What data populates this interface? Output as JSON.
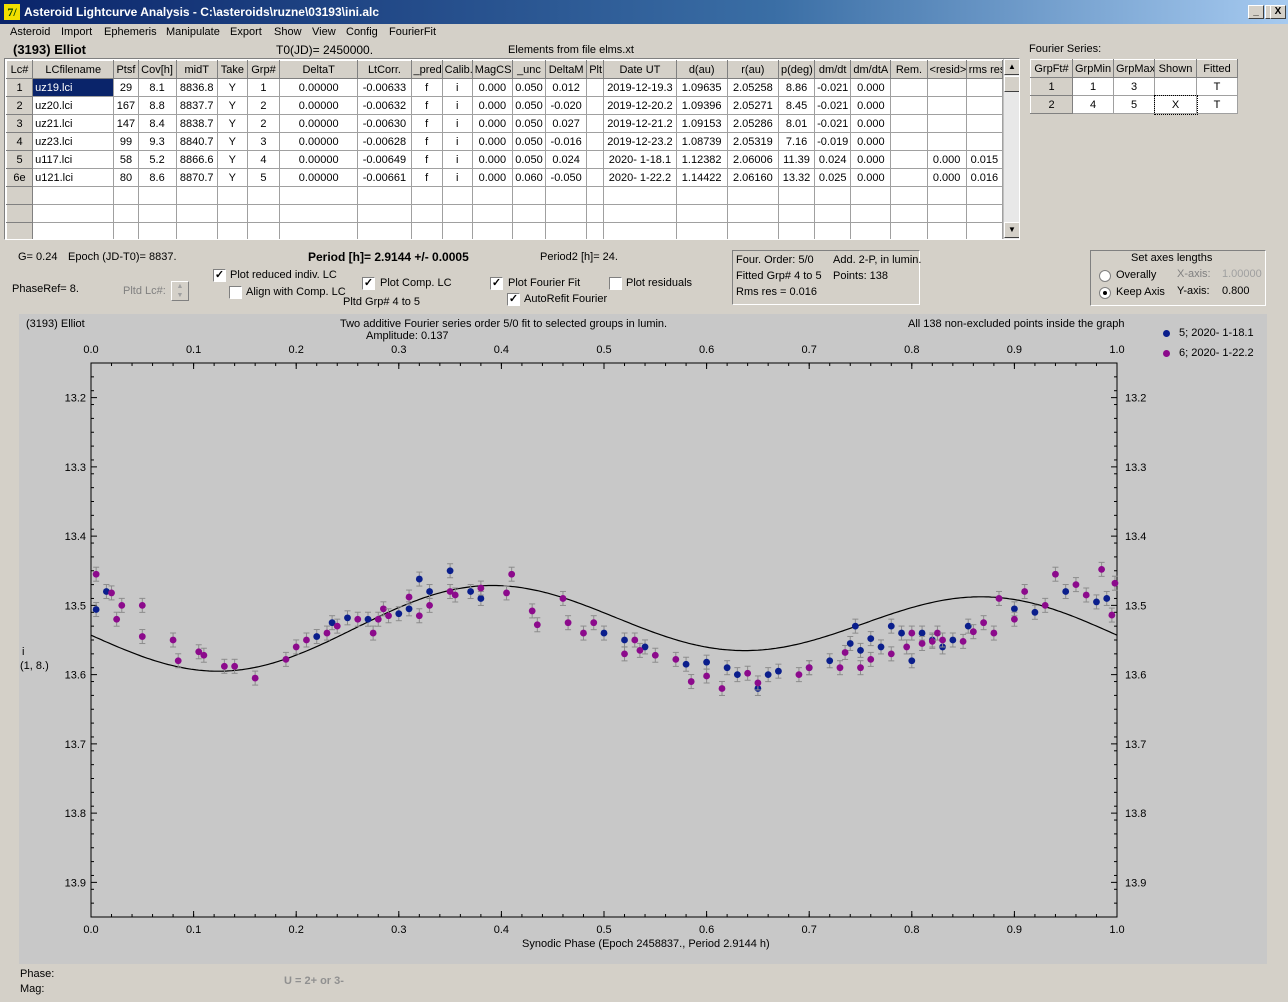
{
  "window": {
    "title": "Asteroid Lightcurve Analysis - C:\\asteroids\\ruzne\\03193\\ini.alc",
    "icon": "7/",
    "min": "_",
    "max": "□",
    "close": "X"
  },
  "menu": [
    "Asteroid",
    "Import",
    "Ephemeris",
    "Manipulate",
    "Export",
    "Show",
    "View",
    "Config",
    "FourierFit"
  ],
  "header": {
    "asteroid": "(3193) Elliot",
    "t0": "T0(JD)= 2450000.",
    "elements": "Elements from file elms.xt",
    "fourier_label": "Fourier Series:"
  },
  "lc_table": {
    "columns": [
      "Lc#",
      "LCfilename",
      "Ptsf",
      "Cov[h]",
      "midT",
      "Take",
      "Grp#",
      "DeltaT",
      "LtCorr.",
      "_pred.",
      "Calib.",
      "MagCS",
      "_unc",
      "DeltaM",
      "Plt",
      "Date UT",
      "d(au)",
      "r(au)",
      "p(deg)",
      "dm/dt",
      "dm/dtA",
      "Rem.",
      "<resid>",
      "rms res"
    ],
    "rows": [
      [
        "1",
        "uz19.lci",
        "29",
        "8.1",
        "8836.8",
        "Y",
        "1",
        "0.00000",
        "-0.00633",
        "f",
        "i",
        "0.000",
        "0.050",
        "0.012",
        "",
        "2019-12-19.3",
        "1.09635",
        "2.05258",
        "8.86",
        "-0.021",
        "0.000",
        "",
        "",
        ""
      ],
      [
        "2",
        "uz20.lci",
        "167",
        "8.8",
        "8837.7",
        "Y",
        "2",
        "0.00000",
        "-0.00632",
        "f",
        "i",
        "0.000",
        "0.050",
        "-0.020",
        "",
        "2019-12-20.2",
        "1.09396",
        "2.05271",
        "8.45",
        "-0.021",
        "0.000",
        "",
        "",
        ""
      ],
      [
        "3",
        "uz21.lci",
        "147",
        "8.4",
        "8838.7",
        "Y",
        "2",
        "0.00000",
        "-0.00630",
        "f",
        "i",
        "0.000",
        "0.050",
        "0.027",
        "",
        "2019-12-21.2",
        "1.09153",
        "2.05286",
        "8.01",
        "-0.021",
        "0.000",
        "",
        "",
        ""
      ],
      [
        "4",
        "uz23.lci",
        "99",
        "9.3",
        "8840.7",
        "Y",
        "3",
        "0.00000",
        "-0.00628",
        "f",
        "i",
        "0.000",
        "0.050",
        "-0.016",
        "",
        "2019-12-23.2",
        "1.08739",
        "2.05319",
        "7.16",
        "-0.019",
        "0.000",
        "",
        "",
        ""
      ],
      [
        "5",
        "u117.lci",
        "58",
        "5.2",
        "8866.6",
        "Y",
        "4",
        "0.00000",
        "-0.00649",
        "f",
        "i",
        "0.000",
        "0.050",
        "0.024",
        "",
        "2020- 1-18.1",
        "1.12382",
        "2.06006",
        "11.39",
        "0.024",
        "0.000",
        "",
        "0.000",
        "0.015"
      ],
      [
        "6e",
        "u121.lci",
        "80",
        "8.6",
        "8870.7",
        "Y",
        "5",
        "0.00000",
        "-0.00661",
        "f",
        "i",
        "0.000",
        "0.060",
        "-0.050",
        "",
        "2020- 1-22.2",
        "1.14422",
        "2.06160",
        "13.32",
        "0.025",
        "0.000",
        "",
        "0.000",
        "0.016"
      ]
    ]
  },
  "fourier_table": {
    "columns": [
      "GrpFt#",
      "GrpMin",
      "GrpMax",
      "Shown",
      "Fitted"
    ],
    "rows": [
      [
        "1",
        "1",
        "3",
        "",
        "T"
      ],
      [
        "2",
        "4",
        "5",
        "X",
        "T"
      ]
    ]
  },
  "controls": {
    "g": "G= 0.24",
    "epoch": "Epoch (JD-T0)= 8837.",
    "period": "Period [h]= 2.9144 +/- 0.0005",
    "period2": "Period2 [h]= 24.",
    "phaseref": "PhaseRef= 8.",
    "pltd_lc": "Pltd Lc#:",
    "plot_reduced": "Plot reduced indiv. LC",
    "align_comp": "Align with Comp. LC",
    "plot_comp": "Plot Comp. LC",
    "pltd_grp": "Pltd Grp#  4   to   5",
    "plot_fourier": "Plot Fourier Fit",
    "autorefit": "AutoRefit Fourier",
    "plot_residuals": "Plot residuals",
    "info1": "Four. Order:  5/0",
    "info2": "Add. 2-P, in lumin.",
    "info3": "Fitted Grp# 4 to 5",
    "info4": "Points: 138",
    "info5": "Rms res    = 0.016",
    "axes_title": "Set axes lengths",
    "overally": "Overally",
    "keepaxis": "Keep Axis",
    "xaxis_lbl": "X-axis:",
    "xaxis_val": "1.00000",
    "yaxis_lbl": "Y-axis:",
    "yaxis_val": "0.800"
  },
  "status": {
    "phase": "Phase:",
    "mag": "Mag:",
    "hint": "U = 2+ or 3-"
  },
  "chart_data": {
    "type": "scatter",
    "title": "Two additive Fourier series order 5/0 fit to selected groups in lumin.",
    "subtitle": "Amplitude: 0.137",
    "object": "(3193) Elliot",
    "note": "All 138 non-excluded points inside the graph",
    "xlabel": "Synodic Phase (Epoch 2458837., Period 2.9144 h)",
    "ylabel": "i",
    "ylabel2": "(1, 8.)",
    "xlim": [
      0,
      1
    ],
    "ylim": [
      13.95,
      13.15
    ],
    "xticks": [
      "0.0",
      "0.1",
      "0.2",
      "0.3",
      "0.4",
      "0.5",
      "0.6",
      "0.7",
      "0.8",
      "0.9",
      "1.0"
    ],
    "yticks": [
      "13.2",
      "13.3",
      "13.4",
      "13.5",
      "13.6",
      "13.7",
      "13.8",
      "13.9"
    ],
    "series": [
      {
        "name": "5; 2020- 1-18.1",
        "color": "#0a1e8c",
        "points": [
          [
            0.005,
            13.506
          ],
          [
            0.015,
            13.48
          ],
          [
            0.22,
            13.545
          ],
          [
            0.235,
            13.525
          ],
          [
            0.25,
            13.518
          ],
          [
            0.27,
            13.52
          ],
          [
            0.3,
            13.512
          ],
          [
            0.31,
            13.505
          ],
          [
            0.32,
            13.462
          ],
          [
            0.33,
            13.48
          ],
          [
            0.35,
            13.45
          ],
          [
            0.37,
            13.48
          ],
          [
            0.38,
            13.49
          ],
          [
            0.5,
            13.54
          ],
          [
            0.52,
            13.55
          ],
          [
            0.54,
            13.56
          ],
          [
            0.58,
            13.585
          ],
          [
            0.6,
            13.582
          ],
          [
            0.62,
            13.59
          ],
          [
            0.63,
            13.6
          ],
          [
            0.65,
            13.62
          ],
          [
            0.66,
            13.6
          ],
          [
            0.67,
            13.595
          ],
          [
            0.7,
            13.59
          ],
          [
            0.72,
            13.58
          ],
          [
            0.74,
            13.555
          ],
          [
            0.745,
            13.53
          ],
          [
            0.75,
            13.565
          ],
          [
            0.76,
            13.548
          ],
          [
            0.77,
            13.56
          ],
          [
            0.78,
            13.53
          ],
          [
            0.79,
            13.54
          ],
          [
            0.8,
            13.58
          ],
          [
            0.81,
            13.54
          ],
          [
            0.82,
            13.55
          ],
          [
            0.83,
            13.56
          ],
          [
            0.84,
            13.55
          ],
          [
            0.855,
            13.53
          ],
          [
            0.9,
            13.505
          ],
          [
            0.92,
            13.51
          ],
          [
            0.95,
            13.48
          ],
          [
            0.98,
            13.495
          ],
          [
            0.99,
            13.49
          ]
        ]
      },
      {
        "name": "6; 2020- 1-22.2",
        "color": "#8c0a8c",
        "points": [
          [
            0.005,
            13.455
          ],
          [
            0.02,
            13.482
          ],
          [
            0.025,
            13.52
          ],
          [
            0.03,
            13.5
          ],
          [
            0.05,
            13.5
          ],
          [
            0.05,
            13.545
          ],
          [
            0.08,
            13.55
          ],
          [
            0.085,
            13.58
          ],
          [
            0.105,
            13.567
          ],
          [
            0.11,
            13.572
          ],
          [
            0.13,
            13.588
          ],
          [
            0.14,
            13.588
          ],
          [
            0.16,
            13.605
          ],
          [
            0.19,
            13.578
          ],
          [
            0.2,
            13.56
          ],
          [
            0.21,
            13.55
          ],
          [
            0.23,
            13.54
          ],
          [
            0.24,
            13.53
          ],
          [
            0.26,
            13.52
          ],
          [
            0.275,
            13.54
          ],
          [
            0.28,
            13.52
          ],
          [
            0.285,
            13.505
          ],
          [
            0.29,
            13.515
          ],
          [
            0.31,
            13.488
          ],
          [
            0.32,
            13.515
          ],
          [
            0.33,
            13.5
          ],
          [
            0.35,
            13.48
          ],
          [
            0.355,
            13.485
          ],
          [
            0.38,
            13.475
          ],
          [
            0.405,
            13.482
          ],
          [
            0.41,
            13.455
          ],
          [
            0.43,
            13.508
          ],
          [
            0.435,
            13.528
          ],
          [
            0.46,
            13.49
          ],
          [
            0.465,
            13.525
          ],
          [
            0.48,
            13.54
          ],
          [
            0.49,
            13.525
          ],
          [
            0.52,
            13.57
          ],
          [
            0.53,
            13.55
          ],
          [
            0.535,
            13.565
          ],
          [
            0.55,
            13.572
          ],
          [
            0.57,
            13.578
          ],
          [
            0.585,
            13.61
          ],
          [
            0.6,
            13.602
          ],
          [
            0.615,
            13.62
          ],
          [
            0.64,
            13.598
          ],
          [
            0.65,
            13.612
          ],
          [
            0.69,
            13.6
          ],
          [
            0.7,
            13.59
          ],
          [
            0.73,
            13.59
          ],
          [
            0.735,
            13.568
          ],
          [
            0.75,
            13.59
          ],
          [
            0.76,
            13.578
          ],
          [
            0.78,
            13.57
          ],
          [
            0.795,
            13.56
          ],
          [
            0.8,
            13.54
          ],
          [
            0.81,
            13.555
          ],
          [
            0.82,
            13.552
          ],
          [
            0.825,
            13.54
          ],
          [
            0.83,
            13.55
          ],
          [
            0.85,
            13.552
          ],
          [
            0.86,
            13.538
          ],
          [
            0.87,
            13.525
          ],
          [
            0.88,
            13.54
          ],
          [
            0.885,
            13.49
          ],
          [
            0.9,
            13.52
          ],
          [
            0.91,
            13.48
          ],
          [
            0.93,
            13.5
          ],
          [
            0.94,
            13.455
          ],
          [
            0.96,
            13.47
          ],
          [
            0.97,
            13.485
          ],
          [
            0.985,
            13.448
          ],
          [
            0.995,
            13.514
          ],
          [
            0.998,
            13.468
          ]
        ]
      }
    ],
    "fit": {
      "mean": 13.53,
      "amp": 0.0685,
      "phase_shift": 0.26
    }
  }
}
